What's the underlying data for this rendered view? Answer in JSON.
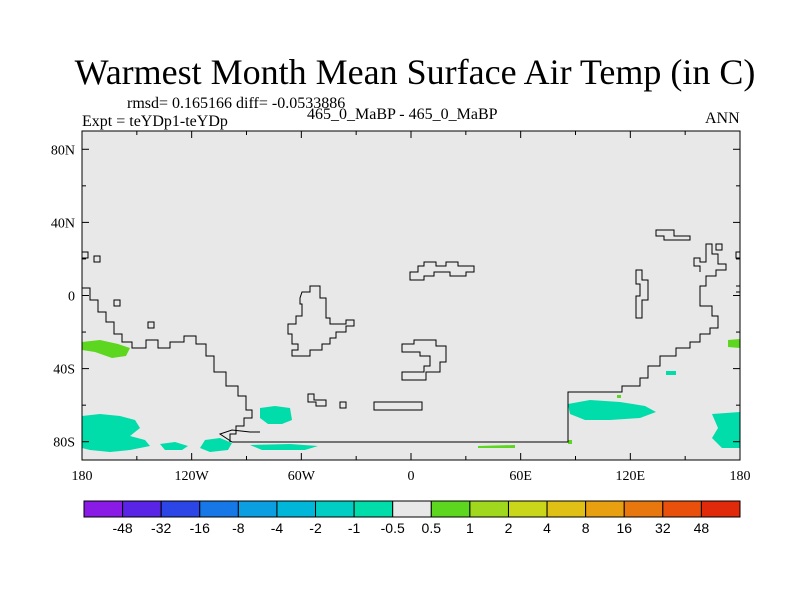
{
  "title": "Warmest Month Mean Surface Air Temp (in C)",
  "stats_line": "rmsd= 0.165166 diff= -0.0533886",
  "experiment_line": "Expt = teYDp1-teYDp",
  "period_line": "465_0_MaBP - 465_0_MaBP",
  "season": "ANN",
  "map": {
    "lat_range": [
      -90,
      90
    ],
    "lon_range": [
      -180,
      180
    ],
    "background_color": "#e8e8e8",
    "lat_ticks": [
      "80N",
      "40N",
      "0",
      "40S",
      "80S"
    ],
    "lon_ticks": [
      "180",
      "120W",
      "60W",
      "0",
      "60E",
      "120E",
      "180"
    ]
  },
  "colorbar": {
    "labels": [
      "-48",
      "-32",
      "-16",
      "-8",
      "-4",
      "-2",
      "-1",
      "-0.5",
      "0.5",
      "1",
      "2",
      "4",
      "8",
      "16",
      "32",
      "48"
    ],
    "colors": [
      "#8a1be6",
      "#5a24e6",
      "#2b45e6",
      "#1677e6",
      "#0b9ee0",
      "#00b7da",
      "#00cdc4",
      "#00dcaa",
      "#e8e8e8",
      "#5cd61e",
      "#a0d81e",
      "#c9d61a",
      "#e0c014",
      "#e8a010",
      "#e8780e",
      "#e8500c",
      "#e02a0a"
    ]
  },
  "anomaly_regions": [
    {
      "level": "-0.5 to -1",
      "color": "#00dcaa"
    },
    {
      "level": "0.5 to 1",
      "color": "#5cd61e"
    }
  ]
}
